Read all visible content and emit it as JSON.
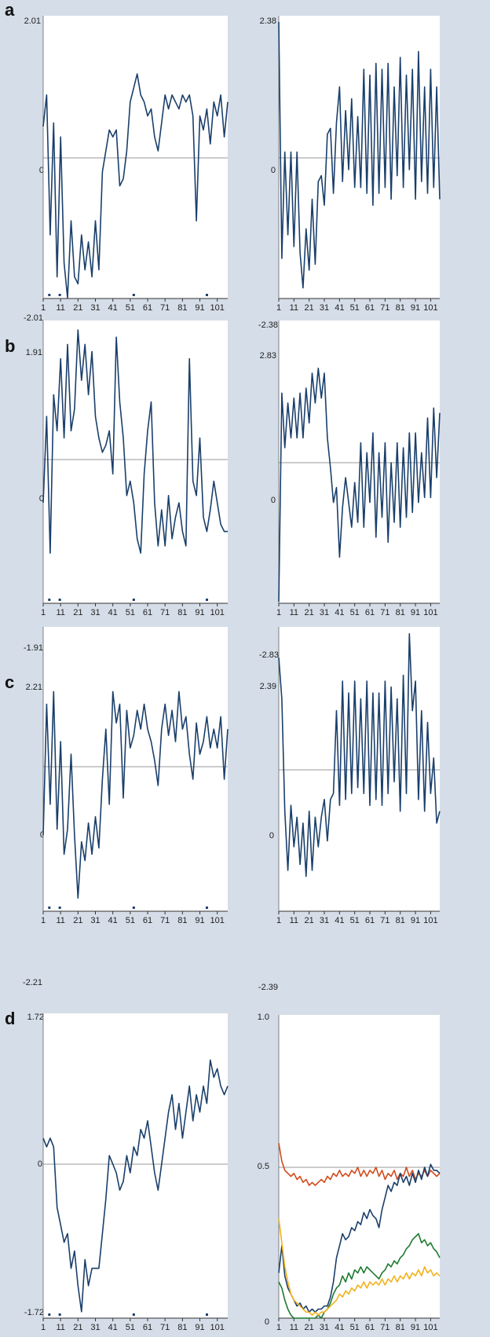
{
  "figure": {
    "panels": [
      {
        "letter": "a",
        "left_ylim": [
          "2.01",
          "0",
          "-2.01"
        ],
        "right_ylim": [
          "2.38",
          "0",
          "-2.38"
        ]
      },
      {
        "letter": "b",
        "left_ylim": [
          "1.91",
          "0",
          "-1.91"
        ],
        "right_ylim": [
          "2.83",
          "0",
          "-2.83"
        ]
      },
      {
        "letter": "c",
        "left_ylim": [
          "2.21",
          "0",
          "-2.21"
        ],
        "right_ylim": [
          "2.39",
          "0",
          "-2.39"
        ]
      },
      {
        "letter": "d",
        "left_ylim": [
          "1.72",
          "0",
          "-1.72"
        ],
        "right_ylim": [
          "1.0",
          "0.5",
          "0"
        ]
      }
    ],
    "x_ticks": [
      "1",
      "11",
      "21",
      "31",
      "41",
      "51",
      "61",
      "71",
      "81",
      "91",
      "101"
    ],
    "markers_x": [
      4,
      16,
      101,
      185
    ],
    "colors": {
      "background": "#d5dde8",
      "plot": "#ffffff",
      "line": "#1a3f6b",
      "zero": "#999999",
      "red": "#d24a1c",
      "yellow": "#f1b21b",
      "green": "#1d7a2e"
    }
  },
  "chart_data": [
    {
      "type": "line",
      "panel": "a-left",
      "ylim": [
        -2.01,
        2.01
      ],
      "x": [
        1,
        3,
        5,
        7,
        9,
        11,
        13,
        15,
        17,
        19,
        21,
        23,
        25,
        27,
        29,
        31,
        33,
        35,
        37,
        39,
        41,
        43,
        45,
        47,
        49,
        51,
        53,
        55,
        57,
        59,
        61,
        63,
        65,
        67,
        69,
        71,
        73,
        75,
        77,
        79,
        81,
        83,
        85,
        87,
        89,
        91,
        93,
        95,
        97,
        99,
        101,
        103,
        105,
        107
      ],
      "series": [
        {
          "values": [
            0.45,
            0.9,
            -1.1,
            0.5,
            -1.7,
            0.3,
            -1.5,
            -2.0,
            -0.9,
            -1.7,
            -1.8,
            -1.1,
            -1.6,
            -1.2,
            -1.7,
            -0.9,
            -1.6,
            -0.2,
            0.1,
            0.4,
            0.3,
            0.4,
            -0.4,
            -0.3,
            0.1,
            0.8,
            1.0,
            1.2,
            0.9,
            0.8,
            0.6,
            0.7,
            0.3,
            0.1,
            0.5,
            0.9,
            0.7,
            0.9,
            0.8,
            0.7,
            0.9,
            0.8,
            0.9,
            0.6,
            -0.9,
            0.6,
            0.4,
            0.7,
            0.2,
            0.8,
            0.6,
            0.9,
            0.3,
            0.8
          ]
        }
      ]
    },
    {
      "type": "line",
      "panel": "a-right",
      "ylim": [
        -2.38,
        2.38
      ],
      "x": [
        1,
        3,
        5,
        7,
        9,
        11,
        13,
        15,
        17,
        19,
        21,
        23,
        25,
        27,
        29,
        31,
        33,
        35,
        37,
        39,
        41,
        43,
        45,
        47,
        49,
        51,
        53,
        55,
        57,
        59,
        61,
        63,
        65,
        67,
        69,
        71,
        73,
        75,
        77,
        79,
        81,
        83,
        85,
        87,
        89,
        91,
        93,
        95,
        97,
        99,
        101,
        103,
        105,
        107
      ],
      "series": [
        {
          "values": [
            2.3,
            -1.7,
            0.1,
            -1.3,
            0.1,
            -1.5,
            0.1,
            -1.6,
            -2.2,
            -1.2,
            -1.9,
            -0.7,
            -1.8,
            -0.4,
            -0.3,
            -0.8,
            0.4,
            0.5,
            -0.6,
            0.6,
            1.2,
            -0.4,
            0.8,
            -0.2,
            1.0,
            -0.5,
            0.7,
            -0.5,
            1.5,
            -0.6,
            1.4,
            -0.8,
            1.6,
            -0.6,
            1.5,
            -0.5,
            1.6,
            -0.7,
            1.2,
            -0.3,
            1.7,
            -0.5,
            1.4,
            -0.2,
            1.5,
            -0.7,
            1.8,
            -0.4,
            1.2,
            -0.6,
            1.5,
            -0.5,
            1.2,
            -0.7
          ]
        }
      ]
    },
    {
      "type": "line",
      "panel": "b-left",
      "ylim": [
        -1.91,
        1.91
      ],
      "x": [
        1,
        3,
        5,
        7,
        9,
        11,
        13,
        15,
        17,
        19,
        21,
        23,
        25,
        27,
        29,
        31,
        33,
        35,
        37,
        39,
        41,
        43,
        45,
        47,
        49,
        51,
        53,
        55,
        57,
        59,
        61,
        63,
        65,
        67,
        69,
        71,
        73,
        75,
        77,
        79,
        81,
        83,
        85,
        87,
        89,
        91,
        93,
        95,
        97,
        99,
        101,
        103,
        105,
        107
      ],
      "series": [
        {
          "values": [
            -0.6,
            0.6,
            -1.3,
            0.9,
            0.4,
            1.4,
            0.3,
            1.6,
            0.4,
            0.7,
            1.8,
            1.1,
            1.6,
            0.9,
            1.5,
            0.6,
            0.3,
            0.1,
            0.2,
            0.4,
            -0.2,
            1.7,
            0.8,
            0.3,
            -0.5,
            -0.3,
            -0.6,
            -1.1,
            -1.3,
            -0.2,
            0.4,
            0.8,
            -0.6,
            -1.2,
            -0.7,
            -1.2,
            -0.5,
            -1.1,
            -0.8,
            -0.6,
            -1.0,
            -1.2,
            1.4,
            -0.3,
            -0.5,
            0.3,
            -0.8,
            -1.0,
            -0.7,
            -0.3,
            -0.6,
            -0.9,
            -1.0,
            -1.0
          ]
        }
      ]
    },
    {
      "type": "line",
      "panel": "b-right",
      "ylim": [
        -2.83,
        2.83
      ],
      "x": [
        1,
        3,
        5,
        7,
        9,
        11,
        13,
        15,
        17,
        19,
        21,
        23,
        25,
        27,
        29,
        31,
        33,
        35,
        37,
        39,
        41,
        43,
        45,
        47,
        49,
        51,
        53,
        55,
        57,
        59,
        61,
        63,
        65,
        67,
        69,
        71,
        73,
        75,
        77,
        79,
        81,
        83,
        85,
        87,
        89,
        91,
        93,
        95,
        97,
        99,
        101,
        103,
        105,
        107
      ],
      "series": [
        {
          "values": [
            -2.8,
            1.4,
            0.3,
            1.2,
            0.5,
            1.3,
            0.5,
            1.4,
            0.5,
            1.5,
            0.8,
            1.8,
            1.2,
            1.9,
            1.3,
            1.8,
            0.5,
            -0.1,
            -0.8,
            -0.5,
            -1.9,
            -0.9,
            -0.3,
            -0.8,
            -1.3,
            -0.4,
            -1.2,
            0.4,
            -1.3,
            0.2,
            -0.8,
            0.6,
            -1.5,
            0.2,
            -1.1,
            0.4,
            -1.6,
            0.0,
            -1.2,
            0.4,
            -1.3,
            0.3,
            -1.1,
            0.6,
            -1.0,
            0.6,
            -0.8,
            0.2,
            -0.7,
            0.9,
            -0.7,
            1.1,
            -0.3,
            1.0
          ]
        }
      ]
    },
    {
      "type": "line",
      "panel": "c-left",
      "ylim": [
        -2.21,
        2.21
      ],
      "x": [
        1,
        3,
        5,
        7,
        9,
        11,
        13,
        15,
        17,
        19,
        21,
        23,
        25,
        27,
        29,
        31,
        33,
        35,
        37,
        39,
        41,
        43,
        45,
        47,
        49,
        51,
        53,
        55,
        57,
        59,
        61,
        63,
        65,
        67,
        69,
        71,
        73,
        75,
        77,
        79,
        81,
        83,
        85,
        87,
        89,
        91,
        93,
        95,
        97,
        99,
        101,
        103,
        105,
        107
      ],
      "series": [
        {
          "values": [
            -1.1,
            1.0,
            -0.6,
            1.2,
            -1.0,
            0.4,
            -1.4,
            -1.0,
            0.2,
            -1.1,
            -2.1,
            -1.2,
            -1.5,
            -0.9,
            -1.4,
            -0.8,
            -1.3,
            -0.2,
            0.6,
            -0.6,
            1.2,
            0.7,
            1.0,
            -0.5,
            0.9,
            0.3,
            0.5,
            0.9,
            0.6,
            1.0,
            0.6,
            0.4,
            0.1,
            -0.3,
            0.6,
            1.0,
            0.5,
            0.9,
            0.4,
            1.2,
            0.6,
            0.8,
            0.2,
            -0.2,
            0.7,
            0.2,
            0.4,
            0.8,
            0.3,
            0.6,
            0.3,
            0.8,
            -0.2,
            0.6
          ]
        }
      ]
    },
    {
      "type": "line",
      "panel": "c-right",
      "ylim": [
        -2.39,
        2.39
      ],
      "x": [
        1,
        3,
        5,
        7,
        9,
        11,
        13,
        15,
        17,
        19,
        21,
        23,
        25,
        27,
        29,
        31,
        33,
        35,
        37,
        39,
        41,
        43,
        45,
        47,
        49,
        51,
        53,
        55,
        57,
        59,
        61,
        63,
        65,
        67,
        69,
        71,
        73,
        75,
        77,
        79,
        81,
        83,
        85,
        87,
        89,
        91,
        93,
        95,
        97,
        99,
        101,
        103,
        105,
        107
      ],
      "series": [
        {
          "values": [
            1.9,
            1.2,
            -0.7,
            -1.7,
            -0.6,
            -1.3,
            -0.8,
            -1.6,
            -0.9,
            -1.8,
            -0.7,
            -1.7,
            -0.8,
            -1.3,
            -0.8,
            -0.5,
            -1.2,
            -0.5,
            -0.4,
            1.0,
            -0.6,
            1.5,
            -0.5,
            1.3,
            -0.4,
            1.5,
            -0.3,
            1.2,
            -0.4,
            1.5,
            -0.6,
            1.3,
            -0.5,
            1.3,
            -0.6,
            1.5,
            -0.4,
            1.4,
            -0.2,
            1.2,
            -0.7,
            1.6,
            -0.4,
            2.3,
            1.0,
            1.5,
            -0.5,
            1.0,
            -0.7,
            0.8,
            -0.4,
            0.2,
            -0.9,
            -0.7
          ]
        }
      ]
    },
    {
      "type": "line",
      "panel": "d-left",
      "ylim": [
        -1.72,
        1.72
      ],
      "x": [
        1,
        3,
        5,
        7,
        9,
        11,
        13,
        15,
        17,
        19,
        21,
        23,
        25,
        27,
        29,
        31,
        33,
        35,
        37,
        39,
        41,
        43,
        45,
        47,
        49,
        51,
        53,
        55,
        57,
        59,
        61,
        63,
        65,
        67,
        69,
        71,
        73,
        75,
        77,
        79,
        81,
        83,
        85,
        87,
        89,
        91,
        93,
        95,
        97,
        99,
        101,
        103,
        105,
        107
      ],
      "series": [
        {
          "values": [
            0.3,
            0.2,
            0.3,
            0.2,
            -0.5,
            -0.7,
            -0.9,
            -0.8,
            -1.2,
            -1.0,
            -1.4,
            -1.7,
            -1.1,
            -1.4,
            -1.2,
            -1.2,
            -1.2,
            -0.8,
            -0.4,
            0.1,
            0.0,
            -0.1,
            -0.3,
            -0.2,
            0.1,
            -0.1,
            0.2,
            0.1,
            0.4,
            0.3,
            0.5,
            0.2,
            -0.1,
            -0.3,
            0.0,
            0.3,
            0.6,
            0.8,
            0.4,
            0.7,
            0.3,
            0.6,
            0.9,
            0.5,
            0.8,
            0.6,
            0.9,
            0.7,
            1.2,
            1.0,
            1.1,
            0.9,
            0.8,
            0.9
          ]
        }
      ]
    },
    {
      "type": "line",
      "panel": "d-right",
      "ylim": [
        0,
        1.0
      ],
      "x": [
        1,
        3,
        5,
        7,
        9,
        11,
        13,
        15,
        17,
        19,
        21,
        23,
        25,
        27,
        29,
        31,
        33,
        35,
        37,
        39,
        41,
        43,
        45,
        47,
        49,
        51,
        53,
        55,
        57,
        59,
        61,
        63,
        65,
        67,
        69,
        71,
        73,
        75,
        77,
        79,
        81,
        83,
        85,
        87,
        89,
        91,
        93,
        95,
        97,
        99,
        101,
        103,
        105,
        107
      ],
      "series": [
        {
          "color": "#d24a1c",
          "values": [
            0.58,
            0.52,
            0.49,
            0.48,
            0.47,
            0.48,
            0.46,
            0.47,
            0.45,
            0.46,
            0.44,
            0.45,
            0.44,
            0.45,
            0.46,
            0.45,
            0.47,
            0.46,
            0.48,
            0.47,
            0.49,
            0.47,
            0.48,
            0.47,
            0.49,
            0.48,
            0.5,
            0.47,
            0.49,
            0.47,
            0.49,
            0.48,
            0.5,
            0.47,
            0.49,
            0.46,
            0.48,
            0.47,
            0.49,
            0.46,
            0.48,
            0.47,
            0.5,
            0.47,
            0.49,
            0.46,
            0.48,
            0.47,
            0.49,
            0.47,
            0.49,
            0.48,
            0.47,
            0.48
          ]
        },
        {
          "color": "#1a3f6b",
          "values": [
            0.15,
            0.24,
            0.14,
            0.1,
            0.08,
            0.06,
            0.04,
            0.05,
            0.03,
            0.04,
            0.02,
            0.03,
            0.02,
            0.03,
            0.03,
            0.04,
            0.04,
            0.07,
            0.12,
            0.2,
            0.24,
            0.28,
            0.26,
            0.27,
            0.3,
            0.29,
            0.32,
            0.31,
            0.35,
            0.33,
            0.36,
            0.34,
            0.33,
            0.3,
            0.36,
            0.4,
            0.44,
            0.42,
            0.45,
            0.44,
            0.48,
            0.45,
            0.47,
            0.44,
            0.48,
            0.45,
            0.49,
            0.46,
            0.5,
            0.47,
            0.51,
            0.49,
            0.49,
            0.48
          ]
        },
        {
          "color": "#1d7a2e",
          "values": [
            0.12,
            0.1,
            0.06,
            0.03,
            0.01,
            0.0,
            0.0,
            0.0,
            0.0,
            0.0,
            0.0,
            0.0,
            0.0,
            0.01,
            0.0,
            0.02,
            0.03,
            0.05,
            0.08,
            0.1,
            0.11,
            0.14,
            0.12,
            0.15,
            0.13,
            0.16,
            0.15,
            0.17,
            0.15,
            0.17,
            0.16,
            0.15,
            0.14,
            0.13,
            0.15,
            0.16,
            0.18,
            0.17,
            0.19,
            0.18,
            0.2,
            0.21,
            0.23,
            0.24,
            0.26,
            0.27,
            0.28,
            0.25,
            0.26,
            0.24,
            0.25,
            0.23,
            0.22,
            0.2
          ]
        },
        {
          "color": "#f1b21b",
          "values": [
            0.33,
            0.25,
            0.17,
            0.12,
            0.08,
            0.06,
            0.05,
            0.04,
            0.03,
            0.02,
            0.02,
            0.01,
            0.02,
            0.01,
            0.02,
            0.02,
            0.03,
            0.04,
            0.05,
            0.06,
            0.08,
            0.07,
            0.09,
            0.08,
            0.1,
            0.09,
            0.11,
            0.1,
            0.12,
            0.1,
            0.12,
            0.11,
            0.12,
            0.11,
            0.13,
            0.11,
            0.13,
            0.12,
            0.14,
            0.12,
            0.14,
            0.13,
            0.15,
            0.13,
            0.15,
            0.14,
            0.16,
            0.14,
            0.17,
            0.15,
            0.16,
            0.14,
            0.15,
            0.14
          ]
        }
      ]
    }
  ]
}
